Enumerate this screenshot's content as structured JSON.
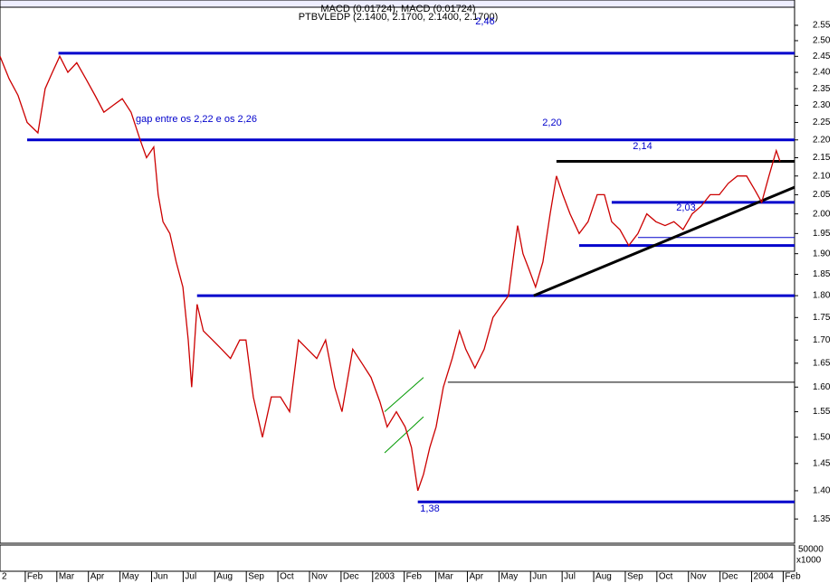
{
  "chart_data": {
    "type": "line",
    "header": [
      "MACD (0.01724), MACD (0.01724)",
      "PTBVLEDP (2.1400, 2.1700, 2.1400, 2.1700)"
    ],
    "log_scale": true,
    "x": [
      0.2,
      0.49,
      0.77,
      1.06,
      1.4,
      1.63,
      1.86,
      2.09,
      2.35,
      2.63,
      2.92,
      3.21,
      3.49,
      3.78,
      4.07,
      4.35,
      4.64,
      4.84,
      5.07,
      5.21,
      5.36,
      5.58,
      5.78,
      5.99,
      6.16,
      6.27,
      6.44,
      6.64,
      6.93,
      7.22,
      7.5,
      7.79,
      7.99,
      8.22,
      8.51,
      8.79,
      9.08,
      9.37,
      9.65,
      9.94,
      10.23,
      10.51,
      10.8,
      11.03,
      11.37,
      11.66,
      11.95,
      12.23,
      12.46,
      12.75,
      13.03,
      13.23,
      13.43,
      13.61,
      13.81,
      14.01,
      14.24,
      14.52,
      14.75,
      14.95,
      15.24,
      15.53,
      15.81,
      16.1,
      16.3,
      16.47,
      16.59,
      16.76,
      16.96,
      17.16,
      17.39,
      17.62,
      17.82,
      18.02,
      18.25,
      18.54,
      18.82,
      19.11,
      19.34,
      19.57,
      19.83,
      20.11,
      20.4,
      20.68,
      20.97,
      21.26,
      21.54,
      21.83,
      22.12,
      22.4,
      22.69,
      22.98,
      23.26,
      23.55,
      23.84,
      24.12,
      24.32,
      24.55,
      24.78,
      24.9
    ],
    "series": [
      {
        "name": "PTBVLEDP",
        "color": "#cc0000",
        "values": [
          2.45,
          2.38,
          2.33,
          2.25,
          2.22,
          2.35,
          2.4,
          2.45,
          2.4,
          2.43,
          2.38,
          2.33,
          2.28,
          2.3,
          2.32,
          2.28,
          2.2,
          2.15,
          2.18,
          2.05,
          1.98,
          1.95,
          1.88,
          1.82,
          1.7,
          1.6,
          1.78,
          1.72,
          1.7,
          1.68,
          1.66,
          1.7,
          1.7,
          1.58,
          1.5,
          1.58,
          1.58,
          1.55,
          1.7,
          1.68,
          1.66,
          1.7,
          1.6,
          1.55,
          1.68,
          1.65,
          1.62,
          1.57,
          1.52,
          1.55,
          1.52,
          1.48,
          1.4,
          1.43,
          1.48,
          1.52,
          1.6,
          1.66,
          1.72,
          1.68,
          1.64,
          1.68,
          1.75,
          1.78,
          1.8,
          1.9,
          1.97,
          1.9,
          1.86,
          1.82,
          1.88,
          2.0,
          2.1,
          2.05,
          2.0,
          1.95,
          1.98,
          2.05,
          2.05,
          1.98,
          1.96,
          1.92,
          1.95,
          2.0,
          1.98,
          1.97,
          1.98,
          1.96,
          2.0,
          2.02,
          2.05,
          2.05,
          2.08,
          2.1,
          2.1,
          2.06,
          2.03,
          2.1,
          2.17,
          2.14
        ]
      }
    ],
    "levels": [
      {
        "value": 2.46,
        "x_start": 2.05,
        "color": "#0000cc",
        "width": 3
      },
      {
        "value": 2.2,
        "x_start": 1.06,
        "color": "#0000cc",
        "width": 3
      },
      {
        "value": 1.8,
        "x_start": 6.44,
        "color": "#0000cc",
        "width": 3
      },
      {
        "value": 1.38,
        "x_start": 13.43,
        "color": "#0000cc",
        "width": 3
      },
      {
        "value": 2.14,
        "x_start": 17.82,
        "color": "#000000",
        "width": 3
      },
      {
        "value": 2.03,
        "x_start": 19.57,
        "color": "#0000cc",
        "width": 3
      },
      {
        "value": 1.92,
        "x_start": 18.54,
        "color": "#0000cc",
        "width": 3
      },
      {
        "value": 1.94,
        "x_start": 20.4,
        "color": "#0000cc",
        "width": 1
      },
      {
        "value": 1.61,
        "x_start": 14.38,
        "color": "#000000",
        "width": 1
      }
    ],
    "trendlines": [
      {
        "x": [
          17.1,
          25.36
        ],
        "y": [
          1.8,
          2.07
        ],
        "color": "#000000",
        "width": 3
      },
      {
        "x": [
          12.38,
          13.61
        ],
        "y": [
          1.55,
          1.62
        ],
        "color": "#009900",
        "width": 1
      },
      {
        "x": [
          12.38,
          13.61
        ],
        "y": [
          1.47,
          1.54
        ],
        "color": "#009900",
        "width": 1
      }
    ],
    "annotations": [
      "gap entre os 2,22 e os 2,26",
      "2,20",
      "2,14",
      "2,03",
      "1,38",
      "2,46"
    ],
    "xlim": [
      0.2,
      25.36
    ],
    "ylim": [
      1.31,
      2.61
    ],
    "xticks": [
      {
        "value": 0,
        "label": "2"
      },
      {
        "value": 1,
        "label": "Feb"
      },
      {
        "value": 2,
        "label": "Mar"
      },
      {
        "value": 3,
        "label": "Apr"
      },
      {
        "value": 4,
        "label": "May"
      },
      {
        "value": 5,
        "label": "Jun"
      },
      {
        "value": 6,
        "label": "Jul"
      },
      {
        "value": 7,
        "label": "Aug"
      },
      {
        "value": 8,
        "label": "Sep"
      },
      {
        "value": 9,
        "label": "Oct"
      },
      {
        "value": 10,
        "label": "Nov"
      },
      {
        "value": 11,
        "label": "Dec"
      },
      {
        "value": 12,
        "label": "2003"
      },
      {
        "value": 13,
        "label": "Feb"
      },
      {
        "value": 14,
        "label": "Mar"
      },
      {
        "value": 15,
        "label": "Apr"
      },
      {
        "value": 16,
        "label": "May"
      },
      {
        "value": 17,
        "label": "Jun"
      },
      {
        "value": 18,
        "label": "Jul"
      },
      {
        "value": 19,
        "label": "Aug"
      },
      {
        "value": 20,
        "label": "Sep"
      },
      {
        "value": 21,
        "label": "Oct"
      },
      {
        "value": 22,
        "label": "Nov"
      },
      {
        "value": 23,
        "label": "Dec"
      },
      {
        "value": 24,
        "label": "2004"
      },
      {
        "value": 25,
        "label": "Feb"
      }
    ],
    "yticks": [
      2.55,
      {
        "value": 2.5,
        "label": "2.50"
      },
      2.45,
      {
        "value": 2.4,
        "label": "2.40"
      },
      2.35,
      {
        "value": 2.3,
        "label": "2.30"
      },
      2.25,
      {
        "value": 2.2,
        "label": "2.20"
      },
      2.15,
      {
        "value": 2.1,
        "label": "2.10"
      },
      2.05,
      {
        "value": 2,
        "label": "2.00"
      },
      1.95,
      {
        "value": 1.9,
        "label": "1.90"
      },
      1.85,
      {
        "value": 1.8,
        "label": "1.80"
      },
      1.75,
      {
        "value": 1.7,
        "label": "1.70"
      },
      1.65,
      {
        "value": 1.6,
        "label": "1.60"
      },
      1.55,
      {
        "value": 1.5,
        "label": "1.50"
      },
      1.45,
      {
        "value": 1.4,
        "label": "1.40"
      },
      1.35
    ],
    "volume_axis": {
      "tick": 50000,
      "unit": "x1000"
    }
  }
}
